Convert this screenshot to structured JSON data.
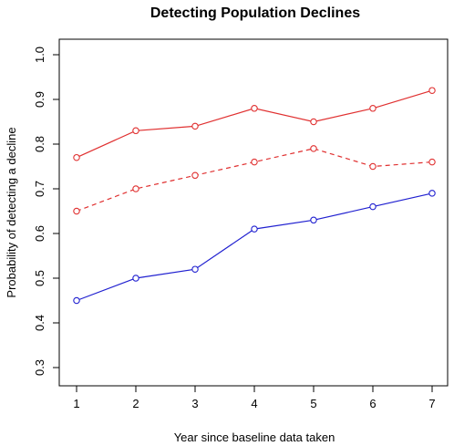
{
  "chart_data": {
    "type": "line",
    "title": "Detecting Population Declines",
    "xlabel": "Year since baseline data taken",
    "ylabel": "Probability of detecting a decline",
    "x": [
      1,
      2,
      3,
      4,
      5,
      6,
      7
    ],
    "xlim": [
      1,
      7
    ],
    "ylim": [
      0.3,
      1.0
    ],
    "xticks": [
      "1",
      "2",
      "3",
      "4",
      "5",
      "6",
      "7"
    ],
    "yticks": [
      "0.3",
      "0.4",
      "0.5",
      "0.6",
      "0.7",
      "0.8",
      "0.9",
      "1.0"
    ],
    "grid": false,
    "legend": "none",
    "series": [
      {
        "color": "#e03030",
        "line_style": "solid",
        "marker": "open-circle",
        "values": [
          0.77,
          0.83,
          0.84,
          0.88,
          0.85,
          0.88,
          0.92
        ]
      },
      {
        "color": "#e03030",
        "line_style": "dashed",
        "marker": "open-circle",
        "values": [
          0.65,
          0.7,
          0.73,
          0.76,
          0.79,
          0.75,
          0.76
        ]
      },
      {
        "color": "#2020d0",
        "line_style": "solid",
        "marker": "open-circle",
        "values": [
          0.45,
          0.5,
          0.52,
          0.61,
          0.63,
          0.66,
          0.69
        ]
      }
    ]
  }
}
